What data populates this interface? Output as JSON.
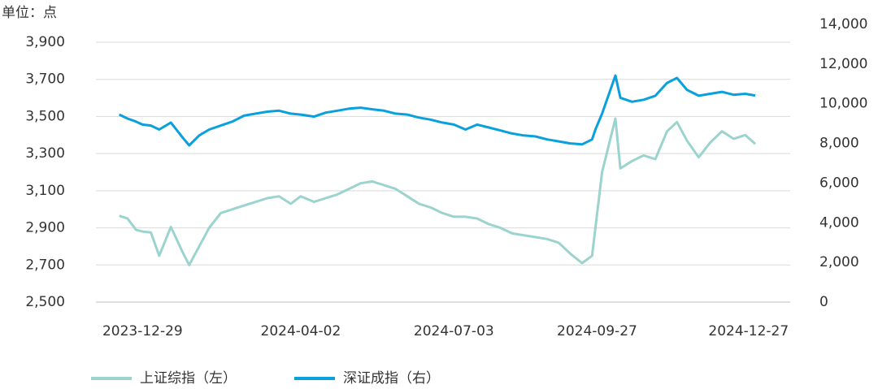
{
  "chart_data": {
    "type": "line",
    "y_label": "单位：点",
    "x": [
      "2023-12-15",
      "2023-12-20",
      "2023-12-25",
      "2023-12-29",
      "2024-01-03",
      "2024-01-08",
      "2024-01-15",
      "2024-01-22",
      "2024-01-26",
      "2024-02-01",
      "2024-02-07",
      "2024-02-14",
      "2024-02-21",
      "2024-02-28",
      "2024-03-06",
      "2024-03-13",
      "2024-03-20",
      "2024-03-27",
      "2024-04-02",
      "2024-04-10",
      "2024-04-17",
      "2024-04-24",
      "2024-05-01",
      "2024-05-08",
      "2024-05-15",
      "2024-05-22",
      "2024-05-29",
      "2024-06-05",
      "2024-06-12",
      "2024-06-19",
      "2024-06-26",
      "2024-07-03",
      "2024-07-10",
      "2024-07-17",
      "2024-07-24",
      "2024-07-31",
      "2024-08-07",
      "2024-08-14",
      "2024-08-21",
      "2024-08-28",
      "2024-09-04",
      "2024-09-11",
      "2024-09-18",
      "2024-09-24",
      "2024-09-26",
      "2024-09-30",
      "2024-10-08",
      "2024-10-11",
      "2024-10-18",
      "2024-10-25",
      "2024-11-01",
      "2024-11-08",
      "2024-11-14",
      "2024-11-20",
      "2024-11-27",
      "2024-12-04",
      "2024-12-11",
      "2024-12-18",
      "2024-12-25",
      "2024-12-31"
    ],
    "series": [
      {
        "name": "上证综指（左）",
        "color": "#9bd3cf",
        "axis": "y",
        "values": [
          2965,
          2950,
          2890,
          2880,
          2875,
          2750,
          2905,
          2770,
          2700,
          2800,
          2900,
          2980,
          3000,
          3020,
          3040,
          3060,
          3070,
          3030,
          3070,
          3040,
          3060,
          3080,
          3110,
          3140,
          3150,
          3130,
          3110,
          3070,
          3030,
          3010,
          2980,
          2960,
          2960,
          2950,
          2920,
          2900,
          2870,
          2860,
          2850,
          2840,
          2820,
          2760,
          2710,
          2750,
          2900,
          3200,
          3489,
          3220,
          3260,
          3290,
          3270,
          3420,
          3470,
          3370,
          3280,
          3360,
          3420,
          3380,
          3400,
          3352
        ]
      },
      {
        "name": "深证成指（右）",
        "color": "#0aa0dc",
        "axis": "y2",
        "values": [
          9450,
          9250,
          9100,
          8950,
          8900,
          8700,
          9050,
          8300,
          7900,
          8400,
          8700,
          8900,
          9100,
          9400,
          9500,
          9600,
          9650,
          9500,
          9450,
          9350,
          9550,
          9650,
          9750,
          9800,
          9720,
          9650,
          9500,
          9450,
          9300,
          9200,
          9050,
          8950,
          8700,
          8950,
          8800,
          8650,
          8500,
          8400,
          8350,
          8200,
          8100,
          8000,
          7950,
          8200,
          8700,
          9500,
          11420,
          10300,
          10100,
          10200,
          10400,
          11050,
          11300,
          10700,
          10400,
          10500,
          10600,
          10450,
          10500,
          10415
        ]
      }
    ],
    "xlim": [
      "2023-12-01",
      "2025-01-21"
    ],
    "xticks": [
      "2023-12-29",
      "2024-04-02",
      "2024-07-03",
      "2024-09-27",
      "2024-12-27"
    ],
    "ylim": [
      2500,
      3900
    ],
    "yticks": [
      {
        "value": 2500,
        "label": "2,500"
      },
      {
        "value": 2700,
        "label": "2,700"
      },
      {
        "value": 2900,
        "label": "2,900"
      },
      {
        "value": 3100,
        "label": "3,100"
      },
      {
        "value": 3300,
        "label": "3,300"
      },
      {
        "value": 3500,
        "label": "3,500"
      },
      {
        "value": 3700,
        "label": "3,700"
      },
      {
        "value": 3900,
        "label": "3,900"
      }
    ],
    "y2lim": [
      0,
      14000
    ],
    "y2ticks": [
      0,
      {
        "value": 2000,
        "label": "2,000"
      },
      {
        "value": 4000,
        "label": "4,000"
      },
      {
        "value": 6000,
        "label": "6,000"
      },
      {
        "value": 8000,
        "label": "8,000"
      },
      {
        "value": 10000,
        "label": "10,000"
      },
      {
        "value": 12000,
        "label": "12,000"
      },
      {
        "value": 14000,
        "label": "14,000"
      }
    ],
    "grid": true
  }
}
